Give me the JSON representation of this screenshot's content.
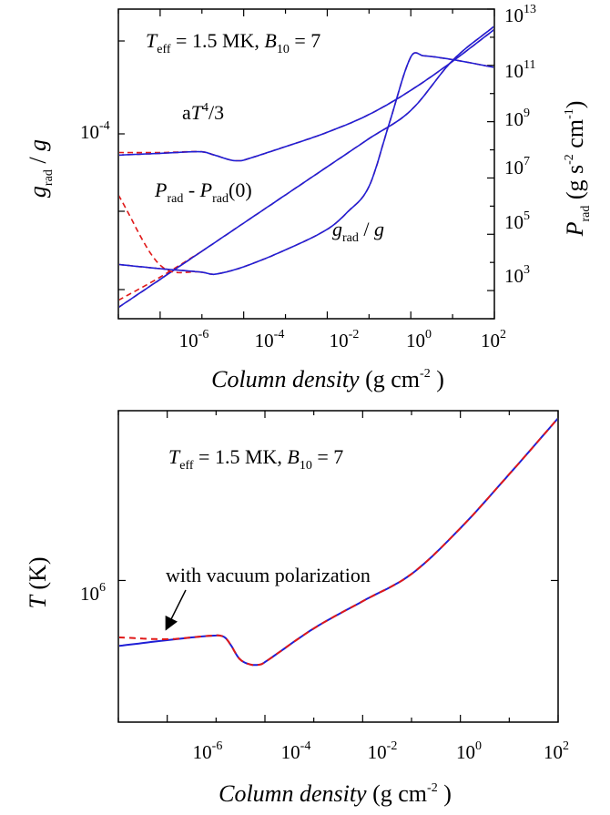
{
  "chart_data": [
    {
      "type": "line",
      "title": "",
      "xlabel": "Column density (g cm⁻²)",
      "ylabel_left": "g_rad / g",
      "ylabel_right": "P_rad (g s⁻² cm⁻¹)",
      "xscale": "log",
      "xlim": [
        1e-07,
        100
      ],
      "x_tick_labels": [
        "10⁻⁶",
        "10⁻⁴",
        "10⁻²",
        "10⁰",
        "10²"
      ],
      "y_left_tick_labels": [
        "10⁻⁴"
      ],
      "y_right_tick_labels": [
        "10³",
        "10⁵",
        "10⁷",
        "10⁹",
        "10¹¹",
        "10¹³"
      ],
      "inset_label": "T_eff = 1.5 MK,  B₁₀ = 7",
      "curve_labels": [
        "aT⁴/3",
        "P_rad - P_rad(0)",
        "g_rad / g"
      ],
      "colors": {
        "solid": "#1f1fd6",
        "dashed": "#e01818"
      },
      "series": [
        {
          "name": "aT⁴/3",
          "axis": "right",
          "yscale": "log",
          "ylim": [
            100.0,
            10000000000000.0
          ],
          "x": [
            1e-07,
            1e-06,
            1e-05,
            2e-05,
            5e-05,
            8e-05,
            0.0001,
            0.001,
            0.01,
            0.1,
            1,
            10,
            100
          ],
          "y": [
            65000000.0,
            75000000.0,
            85000000.0,
            65000000.0,
            43000000.0,
            41000000.0,
            43000000.0,
            130000000.0,
            420000000.0,
            1800000000.0,
            13000000000.0,
            140000000000.0,
            1900000000000.0
          ],
          "y_dashed_start": [
            80000000.0,
            80000000.0,
            85000000.0
          ]
        },
        {
          "name": "P_rad - P_rad(0)",
          "axis": "right",
          "yscale": "log",
          "ylim": [
            100.0,
            10000000000000.0
          ],
          "x": [
            1e-07,
            1e-06,
            1e-05,
            0.0001,
            0.001,
            0.01,
            0.1,
            1,
            10,
            100
          ],
          "y": [
            250.0,
            2500.0,
            25000.0,
            250000.0,
            2500000.0,
            25000000.0,
            250000000.0,
            2500000000.0,
            150000000000.0,
            2500000000000.0
          ],
          "y_dashed_start": [
            450.0,
            3000.0
          ]
        },
        {
          "name": "g_rad / g",
          "axis": "right",
          "yscale": "log",
          "ylim": [
            100.0,
            10000000000000.0
          ],
          "x": [
            1e-07,
            1e-06,
            1e-05,
            2e-05,
            0.0001,
            0.001,
            0.01,
            0.03,
            0.1,
            0.3,
            1,
            2,
            10,
            100
          ],
          "y": [
            8500.0,
            6000.0,
            4500.0,
            3800.0,
            7000.0,
            28000.0,
            150000.0,
            600000.0,
            5000000.0,
            800000000.0,
            200000000000.0,
            220000000000.0,
            160000000000.0,
            85000000000.0
          ],
          "y_dashed_start": [
            2500000.0,
            8000.0
          ]
        }
      ]
    },
    {
      "type": "line",
      "title": "",
      "xlabel": "Column density (g cm⁻²)",
      "ylabel": "T (K)",
      "xscale": "log",
      "yscale": "log",
      "xlim": [
        1e-07,
        100
      ],
      "ylim": [
        280000.0,
        4600000.0
      ],
      "x_tick_labels": [
        "10⁻⁶",
        "10⁻⁴",
        "10⁻²",
        "10⁰",
        "10²"
      ],
      "y_tick_labels": [
        "10⁶"
      ],
      "inset_label": "T_eff = 1.5 MK,  B₁₀ = 7",
      "annotation": "with vacuum polarization",
      "colors": {
        "solid": "#1f1fd6",
        "dashed": "#e01818"
      },
      "series": [
        {
          "name": "",
          "line": "solid",
          "x": [
            1e-07,
            1e-06,
            1e-05,
            1.5e-05,
            2e-05,
            3e-05,
            5e-05,
            8e-05,
            0.0001,
            0.001,
            0.01,
            0.1,
            1,
            10,
            100
          ],
          "y": [
            555000.0,
            585000.0,
            610000.0,
            600000.0,
            560000.0,
            495000.0,
            470000.0,
            470000.0,
            480000.0,
            650000.0,
            830000.0,
            1060000.0,
            1600000.0,
            2600000.0,
            4300000.0
          ]
        },
        {
          "name": "",
          "line": "dashed",
          "x": [
            1e-07,
            1e-06,
            1e-05,
            1.5e-05,
            2e-05,
            3e-05,
            5e-05,
            8e-05,
            0.0001,
            0.001,
            0.01,
            0.1,
            1,
            10,
            100
          ],
          "y": [
            600000.0,
            590000.0,
            610000.0,
            600000.0,
            560000.0,
            495000.0,
            470000.0,
            470000.0,
            480000.0,
            650000.0,
            830000.0,
            1060000.0,
            1600000.0,
            2600000.0,
            4300000.0
          ]
        }
      ]
    }
  ]
}
